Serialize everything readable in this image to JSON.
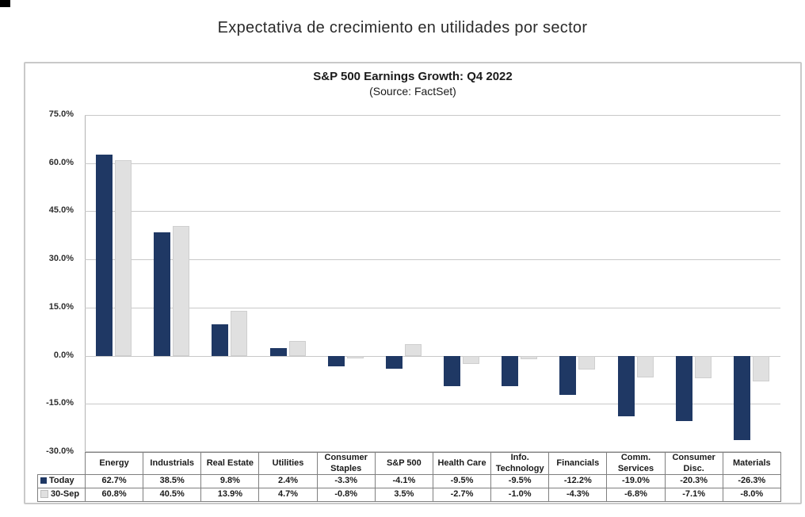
{
  "page": {
    "heading": "Expectativa de crecimiento en utilidades por sector"
  },
  "chart_data": {
    "type": "bar",
    "title": "S&P 500 Earnings Growth: Q4 2022",
    "subtitle": "(Source: FactSet)",
    "categories": [
      "Energy",
      "Industrials",
      "Real Estate",
      "Utilities",
      "Consumer Staples",
      "S&P 500",
      "Health Care",
      "Info. Technology",
      "Financials",
      "Comm. Services",
      "Consumer Disc.",
      "Materials"
    ],
    "series": [
      {
        "name": "Today",
        "color": "#1F3864",
        "values": [
          62.7,
          38.5,
          9.8,
          2.4,
          -3.3,
          -4.1,
          -9.5,
          -9.5,
          -12.2,
          -19.0,
          -20.3,
          -26.3
        ],
        "labels": [
          "62.7%",
          "38.5%",
          "9.8%",
          "2.4%",
          "-3.3%",
          "-4.1%",
          "-9.5%",
          "-9.5%",
          "-12.2%",
          "-19.0%",
          "-20.3%",
          "-26.3%"
        ]
      },
      {
        "name": "30-Sep",
        "color": "#E0E0E0",
        "values": [
          60.8,
          40.5,
          13.9,
          4.7,
          -0.8,
          3.5,
          -2.7,
          -1.0,
          -4.3,
          -6.8,
          -7.1,
          -8.0
        ],
        "labels": [
          "60.8%",
          "40.5%",
          "13.9%",
          "4.7%",
          "-0.8%",
          "3.5%",
          "-2.7%",
          "-1.0%",
          "-4.3%",
          "-6.8%",
          "-7.1%",
          "-8.0%"
        ]
      }
    ],
    "ylim": [
      -30,
      75
    ],
    "ytick_step": 15,
    "yticks": [
      {
        "label": "75.0%",
        "value": 75
      },
      {
        "label": "60.0%",
        "value": 60
      },
      {
        "label": "45.0%",
        "value": 45
      },
      {
        "label": "30.0%",
        "value": 30
      },
      {
        "label": "15.0%",
        "value": 15
      },
      {
        "label": "0.0%",
        "value": 0
      },
      {
        "label": "-15.0%",
        "value": -15
      },
      {
        "label": "-30.0%",
        "value": -30
      }
    ],
    "grid": true,
    "legend_position": "table-first-column",
    "colors": {
      "today_bar": "#1F3864",
      "sep30_bar": "#E0E0E0",
      "gridline": "#C9C9C9",
      "axis": "#B3B3B3",
      "table_border": "#7F7F7F",
      "frame_border": "#C9C9C9"
    }
  }
}
